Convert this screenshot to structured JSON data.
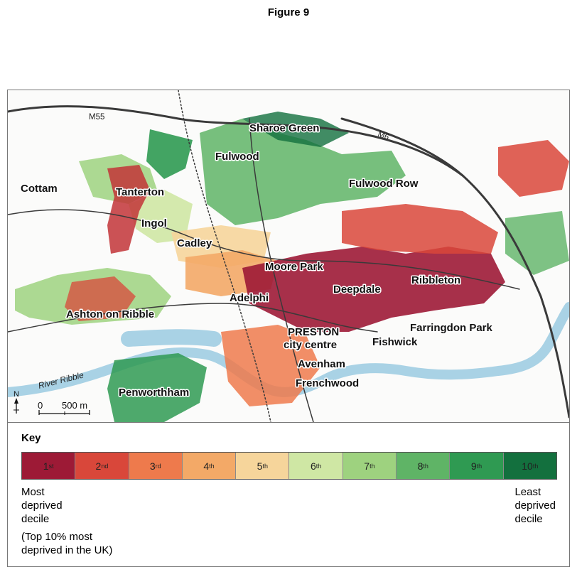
{
  "figure_title": "Figure 9",
  "map": {
    "places": [
      "Sharoe Green",
      "Fulwood",
      "Fulwood Row",
      "Cottam",
      "Tanterton",
      "Ingol",
      "Cadley",
      "Moore Park",
      "Ribbleton",
      "Deepdale",
      "Adelphi",
      "Ashton on Ribble",
      "Farringdon Park",
      "PRESTON",
      "city centre",
      "Fishwick",
      "Avenham",
      "Frenchwood",
      "Penworthham"
    ],
    "roads": [
      "M55",
      "M6"
    ],
    "river": "River Ribble",
    "north": "N",
    "scale": {
      "zero": "0",
      "distance": "500 m"
    }
  },
  "key": {
    "title": "Key",
    "deciles": [
      {
        "num": "1",
        "suffix": "st",
        "color": "#9d1a36"
      },
      {
        "num": "2",
        "suffix": "nd",
        "color": "#d9473a"
      },
      {
        "num": "3",
        "suffix": "rd",
        "color": "#ee7a4c"
      },
      {
        "num": "4",
        "suffix": "th",
        "color": "#f3a967"
      },
      {
        "num": "5",
        "suffix": "th",
        "color": "#f6d59b"
      },
      {
        "num": "6",
        "suffix": "th",
        "color": "#cfe7a4"
      },
      {
        "num": "7",
        "suffix": "th",
        "color": "#9ed27f"
      },
      {
        "num": "8",
        "suffix": "th",
        "color": "#5fb466"
      },
      {
        "num": "9",
        "suffix": "th",
        "color": "#2f9a52"
      },
      {
        "num": "10",
        "suffix": "th",
        "color": "#13703e"
      }
    ],
    "left_label": [
      "Most",
      "deprived",
      "decile"
    ],
    "left_note": [
      "(Top 10% most",
      "deprived in the UK)"
    ],
    "right_label": [
      "Least",
      "deprived",
      "decile"
    ]
  }
}
